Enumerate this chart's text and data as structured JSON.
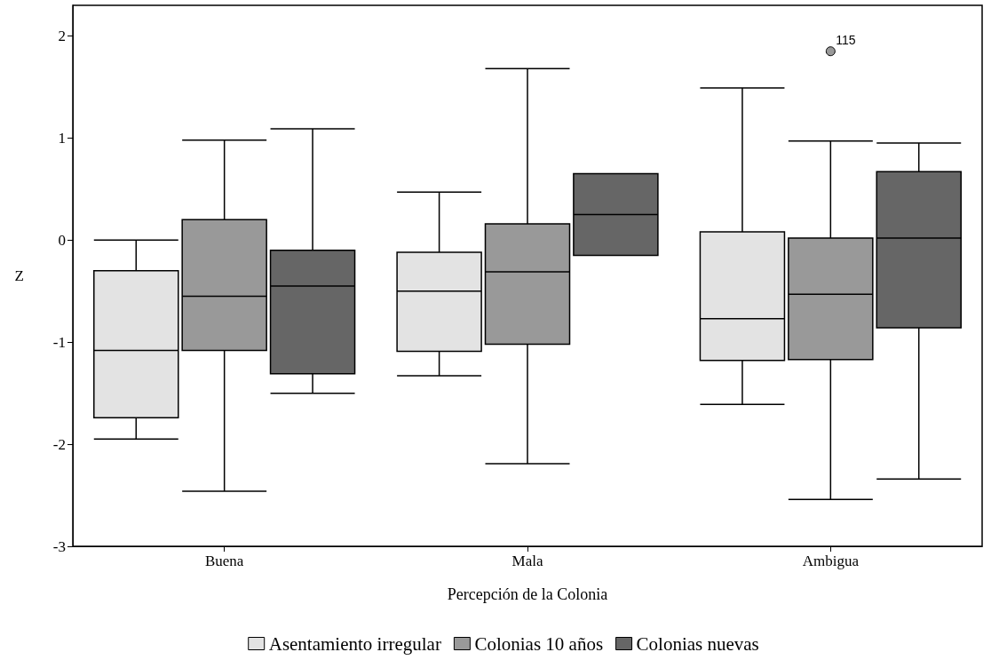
{
  "chart_data": {
    "type": "box",
    "xlabel": "Percepción de la Colonia",
    "ylabel": "Z",
    "categories": [
      "Buena",
      "Mala",
      "Ambigua"
    ],
    "ylim": [
      -3,
      2.3
    ],
    "yticks": [
      -3,
      -2,
      -1,
      0,
      1,
      2
    ],
    "grid": false,
    "legend": "bottom",
    "series": [
      {
        "name": "Asentamiento irregular",
        "color": "#e3e3e3",
        "boxes": [
          {
            "low": -1.95,
            "q1": -1.74,
            "median": -1.08,
            "q3": -0.3,
            "high": 0
          },
          {
            "low": -1.33,
            "q1": -1.09,
            "median": -0.5,
            "q3": -0.12,
            "high": 0.47
          },
          {
            "low": -1.61,
            "q1": -1.18,
            "median": -0.77,
            "q3": 0.08,
            "high": 1.49
          }
        ]
      },
      {
        "name": "Colonias 10 años",
        "color": "#999999",
        "boxes": [
          {
            "low": -2.46,
            "q1": -1.08,
            "median": -0.55,
            "q3": 0.2,
            "high": 0.98
          },
          {
            "low": -2.19,
            "q1": -1.02,
            "median": -0.31,
            "q3": 0.16,
            "high": 1.68
          },
          {
            "low": -2.54,
            "q1": -1.17,
            "median": -0.53,
            "q3": 0.02,
            "high": 0.97,
            "outliers": [
              1.85
            ]
          }
        ]
      },
      {
        "name": "Colonias nuevas",
        "color": "#666666",
        "boxes": [
          {
            "low": -1.5,
            "q1": -1.31,
            "median": -0.45,
            "q3": -0.1,
            "high": 1.09
          },
          {
            "low": -0.15,
            "q1": -0.15,
            "median": 0.25,
            "q3": 0.65,
            "high": 0.65
          },
          {
            "low": -2.34,
            "q1": -0.86,
            "median": 0.02,
            "q3": 0.67,
            "high": 0.95
          }
        ]
      }
    ],
    "annotations": [
      "115"
    ]
  }
}
